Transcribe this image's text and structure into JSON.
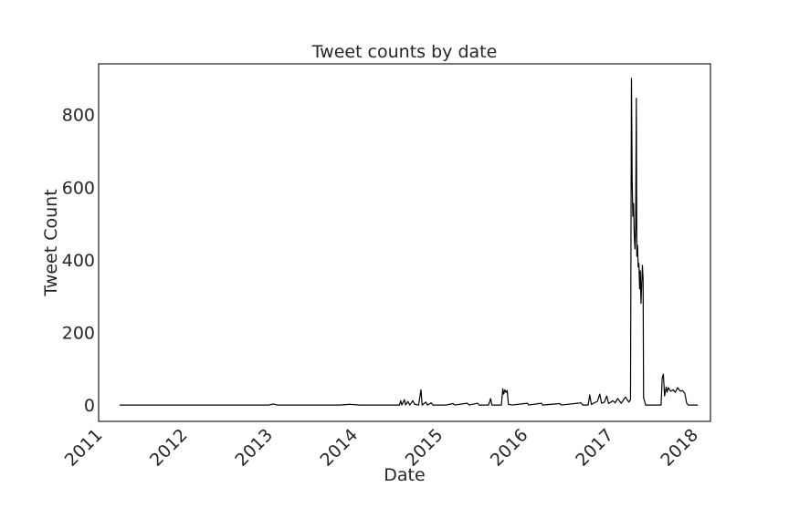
{
  "chart_data": {
    "type": "line",
    "title": "Tweet counts by date",
    "xlabel": "Date",
    "ylabel": "Tweet Count",
    "xlim": [
      "2011-01-01",
      "2018-03-10"
    ],
    "ylim": [
      -45,
      940
    ],
    "x_ticks": [
      "2011-01-01",
      "2012-01-01",
      "2013-01-01",
      "2014-01-01",
      "2015-01-01",
      "2016-01-01",
      "2017-01-01",
      "2018-01-01"
    ],
    "x_tick_labels": [
      "2011",
      "2012",
      "2013",
      "2014",
      "2015",
      "2016",
      "2017",
      "2018"
    ],
    "y_ticks": [
      0,
      200,
      400,
      600,
      800
    ],
    "y_tick_labels": [
      "0",
      "200",
      "400",
      "600",
      "800"
    ],
    "grid": false,
    "line_color": "#000000",
    "series": [
      {
        "points": [
          [
            "2011-04-01",
            0
          ],
          [
            "2013-01-01",
            0
          ],
          [
            "2013-01-20",
            3
          ],
          [
            "2013-02-05",
            0
          ],
          [
            "2013-11-01",
            0
          ],
          [
            "2013-12-15",
            2
          ],
          [
            "2014-01-25",
            0
          ],
          [
            "2014-05-01",
            0
          ],
          [
            "2014-07-15",
            0
          ],
          [
            "2014-07-20",
            12
          ],
          [
            "2014-07-25",
            0
          ],
          [
            "2014-08-05",
            15
          ],
          [
            "2014-08-10",
            0
          ],
          [
            "2014-08-20",
            10
          ],
          [
            "2014-08-28",
            0
          ],
          [
            "2014-09-10",
            12
          ],
          [
            "2014-09-18",
            2
          ],
          [
            "2014-10-05",
            0
          ],
          [
            "2014-10-15",
            42
          ],
          [
            "2014-10-20",
            0
          ],
          [
            "2014-11-05",
            8
          ],
          [
            "2014-11-12",
            0
          ],
          [
            "2014-11-28",
            6
          ],
          [
            "2014-12-05",
            0
          ],
          [
            "2015-02-01",
            0
          ],
          [
            "2015-03-01",
            4
          ],
          [
            "2015-03-10",
            0
          ],
          [
            "2015-05-01",
            5
          ],
          [
            "2015-05-10",
            0
          ],
          [
            "2015-06-15",
            5
          ],
          [
            "2015-06-22",
            0
          ],
          [
            "2015-08-01",
            0
          ],
          [
            "2015-08-10",
            18
          ],
          [
            "2015-08-15",
            0
          ],
          [
            "2015-09-25",
            0
          ],
          [
            "2015-10-01",
            45
          ],
          [
            "2015-10-05",
            30
          ],
          [
            "2015-10-10",
            42
          ],
          [
            "2015-10-15",
            35
          ],
          [
            "2015-10-20",
            40
          ],
          [
            "2015-10-25",
            2
          ],
          [
            "2015-11-10",
            0
          ],
          [
            "2016-01-15",
            5
          ],
          [
            "2016-01-20",
            0
          ],
          [
            "2016-03-15",
            5
          ],
          [
            "2016-03-20",
            0
          ],
          [
            "2016-06-01",
            4
          ],
          [
            "2016-06-08",
            0
          ],
          [
            "2016-09-01",
            6
          ],
          [
            "2016-09-08",
            0
          ],
          [
            "2016-10-01",
            0
          ],
          [
            "2016-10-08",
            28
          ],
          [
            "2016-10-15",
            2
          ],
          [
            "2016-11-10",
            10
          ],
          [
            "2016-11-20",
            30
          ],
          [
            "2016-11-28",
            5
          ],
          [
            "2016-12-10",
            8
          ],
          [
            "2016-12-20",
            25
          ],
          [
            "2016-12-28",
            4
          ],
          [
            "2017-01-15",
            12
          ],
          [
            "2017-01-25",
            6
          ],
          [
            "2017-02-05",
            18
          ],
          [
            "2017-02-20",
            5
          ],
          [
            "2017-03-10",
            22
          ],
          [
            "2017-03-25",
            8
          ],
          [
            "2017-04-01",
            15
          ],
          [
            "2017-04-05",
            900
          ],
          [
            "2017-04-08",
            620
          ],
          [
            "2017-04-11",
            520
          ],
          [
            "2017-04-14",
            555
          ],
          [
            "2017-04-17",
            470
          ],
          [
            "2017-04-20",
            430
          ],
          [
            "2017-04-23",
            490
          ],
          [
            "2017-04-26",
            845
          ],
          [
            "2017-04-28",
            410
          ],
          [
            "2017-05-01",
            440
          ],
          [
            "2017-05-04",
            380
          ],
          [
            "2017-05-07",
            390
          ],
          [
            "2017-05-10",
            320
          ],
          [
            "2017-05-13",
            370
          ],
          [
            "2017-05-16",
            280
          ],
          [
            "2017-05-19",
            330
          ],
          [
            "2017-05-22",
            385
          ],
          [
            "2017-05-25",
            345
          ],
          [
            "2017-05-27",
            20
          ],
          [
            "2017-06-05",
            0
          ],
          [
            "2017-08-10",
            0
          ],
          [
            "2017-08-15",
            75
          ],
          [
            "2017-08-20",
            85
          ],
          [
            "2017-08-25",
            25
          ],
          [
            "2017-09-01",
            50
          ],
          [
            "2017-09-05",
            35
          ],
          [
            "2017-09-10",
            48
          ],
          [
            "2017-09-20",
            38
          ],
          [
            "2017-10-01",
            42
          ],
          [
            "2017-10-10",
            35
          ],
          [
            "2017-10-20",
            48
          ],
          [
            "2017-11-01",
            38
          ],
          [
            "2017-11-10",
            40
          ],
          [
            "2017-11-20",
            32
          ],
          [
            "2017-11-28",
            5
          ],
          [
            "2017-12-05",
            0
          ],
          [
            "2018-01-15",
            0
          ]
        ]
      }
    ]
  }
}
